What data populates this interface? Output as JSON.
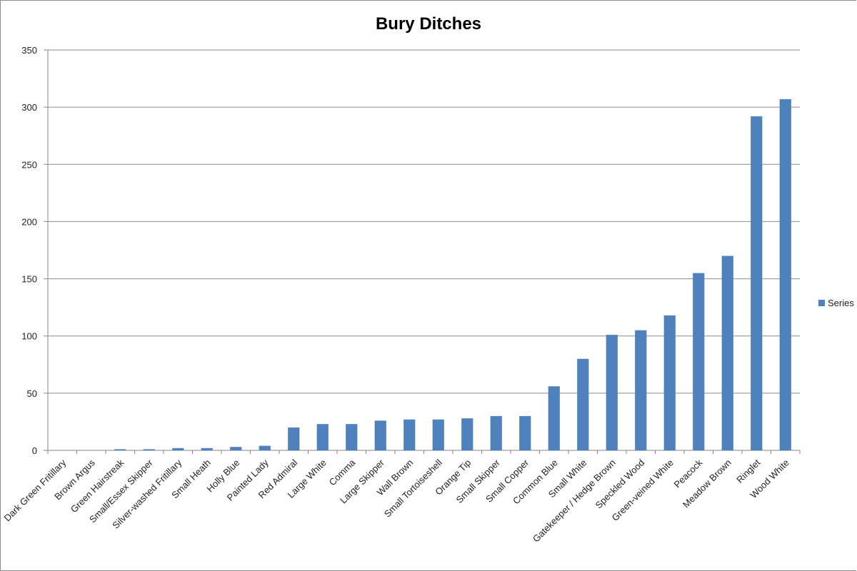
{
  "chart_data": {
    "type": "bar",
    "title": "Bury Ditches",
    "xlabel": "",
    "ylabel": "",
    "ylim": [
      0,
      350
    ],
    "yticks": [
      0,
      50,
      100,
      150,
      200,
      250,
      300,
      350
    ],
    "grid": true,
    "legend_position": "right",
    "bar_color": "#4f81bd",
    "categories": [
      "Dark Green Fritillary",
      "Brown Argus",
      "Green Hairstreak",
      "Small/Essex Skipper",
      "Silver-washed Fritillary",
      "Small Heath",
      "Holly Blue",
      "Painted Lady",
      "Red Admiral",
      "Large White",
      "Comma",
      "Large Skipper",
      "Wall Brown",
      "Small Tortoiseshell",
      "Orange Tip",
      "Small Skipper",
      "Small Copper",
      "Common Blue",
      "Small White",
      "Gatekeeper / Hedge Brown",
      "Speckled Wood",
      "Green-veined White",
      "Peacock",
      "Meadow Brown",
      "Ringlet",
      "Wood White"
    ],
    "series": [
      {
        "name": "Series",
        "values": [
          0,
          0,
          1,
          1,
          2,
          2,
          3,
          4,
          20,
          23,
          23,
          26,
          27,
          27,
          28,
          30,
          30,
          56,
          80,
          101,
          105,
          118,
          155,
          170,
          292,
          307
        ]
      }
    ]
  }
}
